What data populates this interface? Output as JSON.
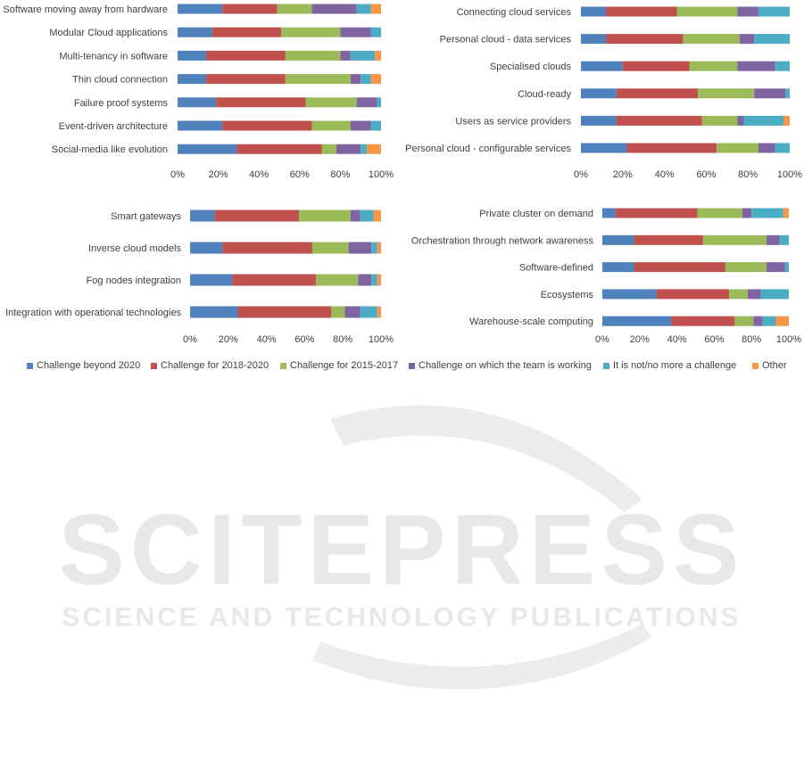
{
  "colors": [
    "#4f81bd",
    "#c0504d",
    "#9bbb59",
    "#8064a2",
    "#4bacc6",
    "#f79646"
  ],
  "legend": [
    "Challenge beyond 2020",
    "Challenge for 2018-2020",
    "Challenge for 2015-2017",
    "Challenge on which the team is working",
    "It is not/no more a challenge",
    "Other"
  ],
  "watermark": {
    "title": "SCITEPRESS",
    "subtitle": "SCIENCE AND TECHNOLOGY PUBLICATIONS"
  },
  "chart_data": [
    {
      "type": "bar",
      "orientation": "horizontal",
      "stacked": true,
      "xlim": [
        0,
        100
      ],
      "x_ticks": [
        "0%",
        "20%",
        "40%",
        "60%",
        "80%",
        "100%"
      ],
      "categories": [
        "Software moving away from hardware",
        "Modular Cloud applications",
        "Multi-tenancy in software",
        "Thin cloud connection",
        "Failure proof systems",
        "Event-driven architecture",
        "Social-media like evolution"
      ],
      "series": [
        {
          "name": "Challenge beyond 2020",
          "values": [
            22,
            17,
            14,
            14,
            19,
            22,
            29
          ]
        },
        {
          "name": "Challenge for 2018-2020",
          "values": [
            27,
            34,
            39,
            39,
            44,
            44,
            42
          ]
        },
        {
          "name": "Challenge for 2015-2017",
          "values": [
            17,
            29,
            27,
            32,
            25,
            19,
            7
          ]
        },
        {
          "name": "Challenge on which the team is working",
          "values": [
            22,
            15,
            5,
            5,
            10,
            10,
            12
          ]
        },
        {
          "name": "It is not/no more a challenge",
          "values": [
            7,
            5,
            12,
            5,
            2,
            5,
            3
          ]
        },
        {
          "name": "Other",
          "values": [
            5,
            0,
            3,
            5,
            0,
            0,
            7
          ]
        }
      ]
    },
    {
      "type": "bar",
      "orientation": "horizontal",
      "stacked": true,
      "xlim": [
        0,
        100
      ],
      "x_ticks": [
        "0%",
        "20%",
        "40%",
        "60%",
        "80%",
        "100%"
      ],
      "categories": [
        "Connecting cloud services",
        "Personal cloud - data services",
        "Specialised clouds",
        "Cloud-ready",
        "Users as service providers",
        "Personal cloud - configurable services"
      ],
      "series": [
        {
          "name": "Challenge beyond 2020",
          "values": [
            12,
            12,
            20,
            17,
            17,
            22
          ]
        },
        {
          "name": "Challenge for 2018-2020",
          "values": [
            34,
            37,
            32,
            39,
            41,
            43
          ]
        },
        {
          "name": "Challenge for 2015-2017",
          "values": [
            29,
            27,
            23,
            27,
            17,
            20
          ]
        },
        {
          "name": "Challenge on which the team is working",
          "values": [
            10,
            7,
            18,
            15,
            3,
            8
          ]
        },
        {
          "name": "It is not/no more a challenge",
          "values": [
            15,
            17,
            7,
            2,
            19,
            7
          ]
        },
        {
          "name": "Other",
          "values": [
            0,
            0,
            0,
            0,
            3,
            0
          ]
        }
      ]
    },
    {
      "type": "bar",
      "orientation": "horizontal",
      "stacked": true,
      "xlim": [
        0,
        100
      ],
      "x_ticks": [
        "0%",
        "20%",
        "40%",
        "60%",
        "80%",
        "100%"
      ],
      "categories": [
        "Smart gateways",
        "Inverse cloud models",
        "Fog nodes integration",
        "Integration with operational technologies"
      ],
      "series": [
        {
          "name": "Challenge beyond 2020",
          "values": [
            13,
            17,
            22,
            25
          ]
        },
        {
          "name": "Challenge for 2018-2020",
          "values": [
            44,
            47,
            44,
            49
          ]
        },
        {
          "name": "Challenge for 2015-2017",
          "values": [
            27,
            19,
            22,
            7
          ]
        },
        {
          "name": "Challenge on which the team is working",
          "values": [
            5,
            12,
            7,
            8
          ]
        },
        {
          "name": "It is not/no more a challenge",
          "values": [
            7,
            3,
            3,
            9
          ]
        },
        {
          "name": "Other",
          "values": [
            4,
            2,
            2,
            2
          ]
        }
      ]
    },
    {
      "type": "bar",
      "orientation": "horizontal",
      "stacked": true,
      "xlim": [
        0,
        100
      ],
      "x_ticks": [
        "0%",
        "20%",
        "40%",
        "60%",
        "80%",
        "100%"
      ],
      "categories": [
        "Private cluster on demand",
        "Orchestration through network awareness",
        "Software-defined",
        "Ecosystems",
        "Warehouse-scale computing"
      ],
      "series": [
        {
          "name": "Challenge beyond 2020",
          "values": [
            7,
            17,
            17,
            29,
            37
          ]
        },
        {
          "name": "Challenge for 2018-2020",
          "values": [
            44,
            37,
            49,
            39,
            34
          ]
        },
        {
          "name": "Challenge for 2015-2017",
          "values": [
            24,
            34,
            22,
            10,
            10
          ]
        },
        {
          "name": "Challenge on which the team is working",
          "values": [
            5,
            7,
            10,
            7,
            5
          ]
        },
        {
          "name": "It is not/no more a challenge",
          "values": [
            17,
            5,
            2,
            15,
            7
          ]
        },
        {
          "name": "Other",
          "values": [
            3,
            0,
            0,
            0,
            7
          ]
        }
      ]
    }
  ]
}
